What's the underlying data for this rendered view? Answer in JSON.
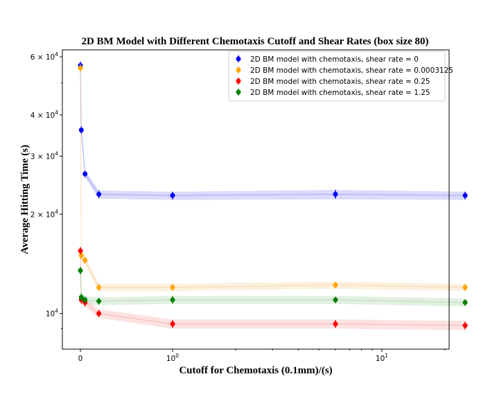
{
  "chart_data": {
    "type": "scatter",
    "title": "2D BM Model with Different Chemotaxis Cutoff and Shear Rates (box size 80)",
    "xlabel": "Cutoff for Chemotaxis (0.1mm)/(s)",
    "ylabel": "Average Hitting Time (s)",
    "xscale": "symlog",
    "yscale": "log",
    "ylim": [
      7800,
      63000
    ],
    "x_ticks": [
      {
        "value": 0,
        "base": "0",
        "exp": ""
      },
      {
        "value": 1,
        "base": "10",
        "exp": "0"
      },
      {
        "value": 10,
        "base": "10",
        "exp": "1"
      }
    ],
    "y_ticks": [
      {
        "value": 10000,
        "base": "10",
        "exp": "4",
        "prefix": ""
      },
      {
        "value": 20000,
        "base": "10",
        "exp": "4",
        "prefix": "2 × "
      },
      {
        "value": 30000,
        "base": "10",
        "exp": "4",
        "prefix": "3 × "
      },
      {
        "value": 40000,
        "base": "10",
        "exp": "4",
        "prefix": "4 × "
      },
      {
        "value": 60000,
        "base": "10",
        "exp": "4",
        "prefix": "6 × "
      }
    ],
    "x": [
      0,
      0.01,
      0.05,
      0.2,
      1,
      6,
      25
    ],
    "legend_position": "upper right",
    "grid": false,
    "series": [
      {
        "name": "2D BM model with chemotaxis, shear rate = 0",
        "color": "#0000ff",
        "band_color": "#6f6ff0",
        "values": [
          56500,
          36000,
          26500,
          23000,
          22800,
          23000,
          22800
        ],
        "errors": [
          1500,
          900,
          600,
          600,
          600,
          700,
          600
        ],
        "band": [
          [
            54000,
            59000
          ],
          [
            35000,
            37000
          ],
          [
            25800,
            27200
          ],
          [
            22300,
            23600
          ],
          [
            22100,
            23400
          ],
          [
            22200,
            23700
          ],
          [
            22100,
            23400
          ]
        ]
      },
      {
        "name": "2D BM model with chemotaxis, shear rate = 0.0003125",
        "color": "#ffa500",
        "band_color": "#f5c27a",
        "values": [
          55500,
          15000,
          14500,
          12000,
          12000,
          12200,
          12000
        ],
        "errors": [
          1400,
          400,
          350,
          300,
          300,
          300,
          300
        ],
        "band": [
          [
            54000,
            57000
          ],
          [
            14500,
            15500
          ],
          [
            14000,
            15000
          ],
          [
            11700,
            12300
          ],
          [
            11700,
            12300
          ],
          [
            11900,
            12500
          ],
          [
            11700,
            12300
          ]
        ]
      },
      {
        "name": "2D BM model with chemotaxis, shear rate = 0.25",
        "color": "#ff0000",
        "band_color": "#f58a8a",
        "values": [
          15500,
          11000,
          10800,
          10000,
          9300,
          9300,
          9200
        ],
        "errors": [
          400,
          300,
          300,
          250,
          250,
          250,
          250
        ],
        "band": [
          [
            15000,
            16000
          ],
          [
            10700,
            11300
          ],
          [
            10500,
            11100
          ],
          [
            9700,
            10300
          ],
          [
            9000,
            9600
          ],
          [
            9000,
            9600
          ],
          [
            8900,
            9500
          ]
        ]
      },
      {
        "name": "2D BM model with chemotaxis, shear rate = 1.25",
        "color": "#008000",
        "band_color": "#8bc48b",
        "values": [
          13500,
          11200,
          11000,
          10900,
          11000,
          11000,
          10800
        ],
        "errors": [
          350,
          300,
          250,
          250,
          300,
          250,
          250
        ],
        "band": [
          [
            13000,
            14000
          ],
          [
            10900,
            11500
          ],
          [
            10700,
            11300
          ],
          [
            10600,
            11200
          ],
          [
            10700,
            11300
          ],
          [
            10700,
            11300
          ],
          [
            10500,
            11100
          ]
        ]
      }
    ]
  }
}
